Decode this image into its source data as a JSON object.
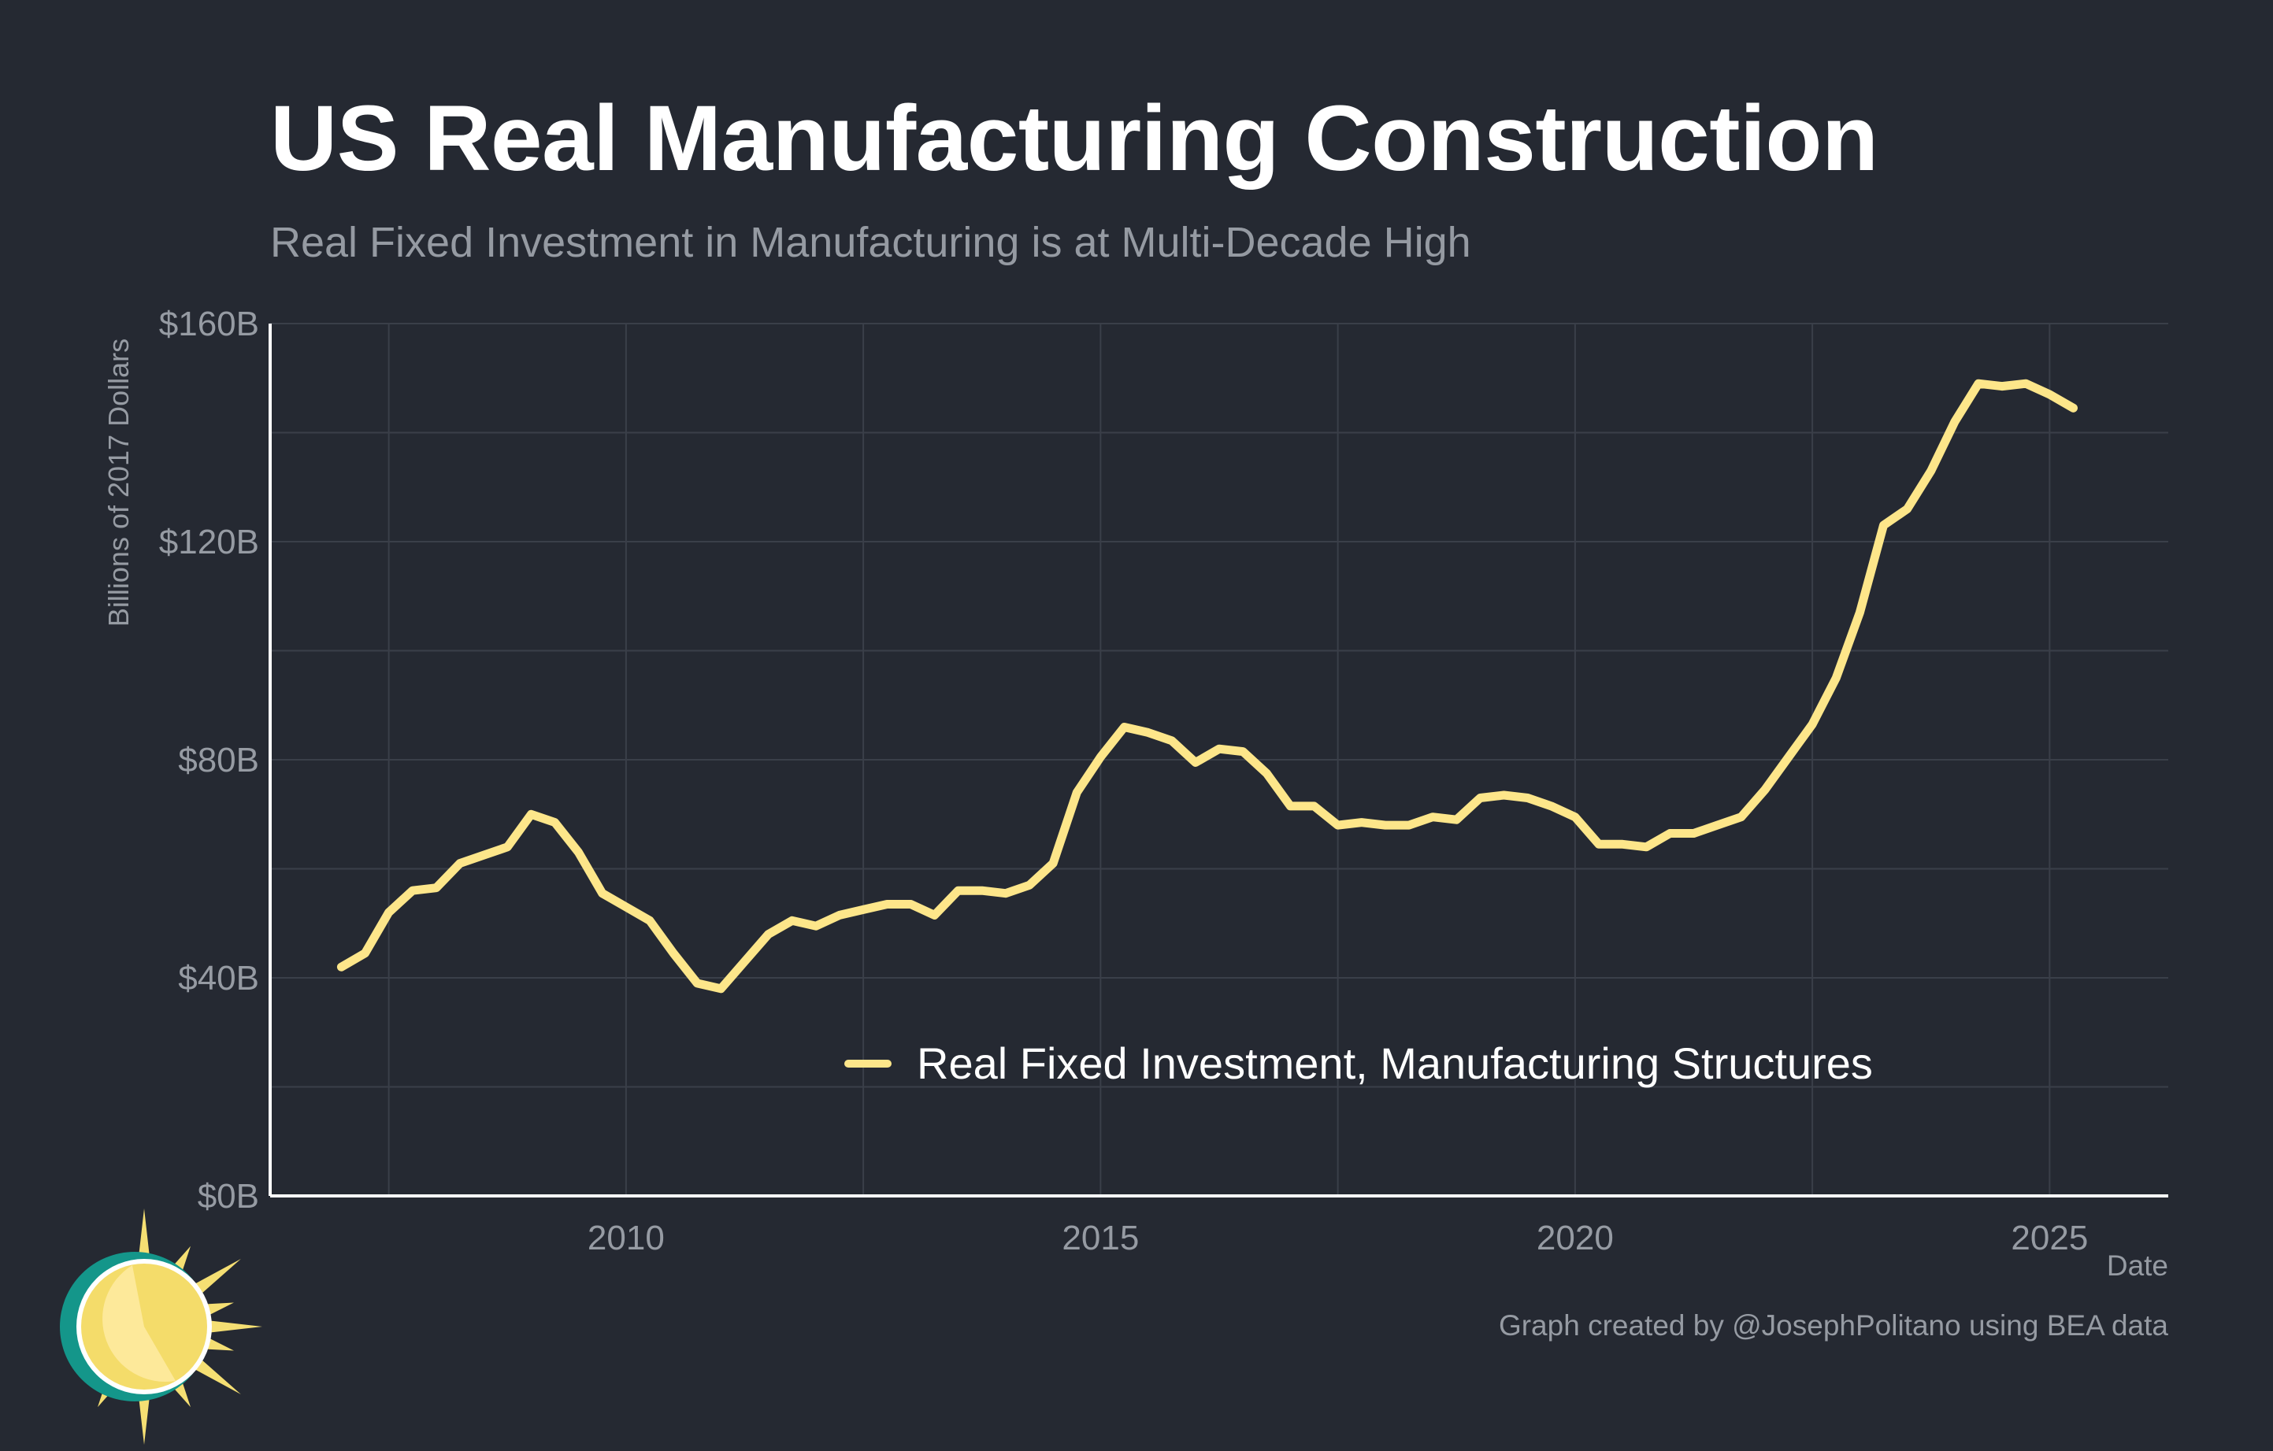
{
  "header": {
    "title": "US Real Manufacturing Construction",
    "subtitle": "Real Fixed Investment in Manufacturing is at Multi-Decade High"
  },
  "footer": {
    "credit": "Graph created by @JosephPolitano using BEA data"
  },
  "logo": {
    "icon": "sun-logo-icon"
  },
  "colors": {
    "background": "#252932",
    "line": "#fde68a",
    "grid": "#3a3f49",
    "axis": "#ffffff",
    "muted_text": "#969ba3",
    "logo_ring": "#14968a",
    "logo_sun": "#f5df73"
  },
  "chart_data": {
    "type": "line",
    "title": "US Real Manufacturing Construction",
    "subtitle": "Real Fixed Investment in Manufacturing is at Multi-Decade High",
    "xlabel": "Date",
    "ylabel": "Billions of 2017 Dollars",
    "xlim": [
      2006.25,
      2026.25
    ],
    "ylim": [
      0,
      160
    ],
    "x_ticks": [
      2010,
      2015,
      2020,
      2025
    ],
    "x_tick_labels": [
      "2010",
      "2015",
      "2020",
      "2025"
    ],
    "y_ticks": [
      0,
      40,
      80,
      120,
      160
    ],
    "y_tick_labels": [
      "$0B",
      "$40B",
      "$80B",
      "$120B",
      "$160B"
    ],
    "grid": true,
    "legend": "bottom-right",
    "series": [
      {
        "name": "Real Fixed Investment, Manufacturing Structures",
        "x": [
          "2007-Q1",
          "2007-Q2",
          "2007-Q3",
          "2007-Q4",
          "2008-Q1",
          "2008-Q2",
          "2008-Q3",
          "2008-Q4",
          "2009-Q1",
          "2009-Q2",
          "2009-Q3",
          "2009-Q4",
          "2010-Q1",
          "2010-Q2",
          "2010-Q3",
          "2010-Q4",
          "2011-Q1",
          "2011-Q2",
          "2011-Q3",
          "2011-Q4",
          "2012-Q1",
          "2012-Q2",
          "2012-Q3",
          "2012-Q4",
          "2013-Q1",
          "2013-Q2",
          "2013-Q3",
          "2013-Q4",
          "2014-Q1",
          "2014-Q2",
          "2014-Q3",
          "2014-Q4",
          "2015-Q1",
          "2015-Q2",
          "2015-Q3",
          "2015-Q4",
          "2016-Q1",
          "2016-Q2",
          "2016-Q3",
          "2016-Q4",
          "2017-Q1",
          "2017-Q2",
          "2017-Q3",
          "2017-Q4",
          "2018-Q1",
          "2018-Q2",
          "2018-Q3",
          "2018-Q4",
          "2019-Q1",
          "2019-Q2",
          "2019-Q3",
          "2019-Q4",
          "2020-Q1",
          "2020-Q2",
          "2020-Q3",
          "2020-Q4",
          "2021-Q1",
          "2021-Q2",
          "2021-Q3",
          "2021-Q4",
          "2022-Q1",
          "2022-Q2",
          "2022-Q3",
          "2022-Q4",
          "2023-Q1",
          "2023-Q2",
          "2023-Q3",
          "2023-Q4",
          "2024-Q1",
          "2024-Q2",
          "2024-Q3",
          "2024-Q4",
          "2025-Q1",
          "2025-Q2"
        ],
        "values": [
          42,
          44.5,
          52,
          56,
          56.5,
          61,
          62.5,
          64,
          70,
          68.5,
          63,
          55.5,
          53,
          50.5,
          44.5,
          39,
          38,
          43,
          48,
          50.5,
          49.5,
          51.5,
          52.5,
          53.5,
          53.5,
          51.5,
          56,
          56,
          55.5,
          57,
          61,
          74,
          80.5,
          86,
          85,
          83.5,
          79.5,
          82,
          81.5,
          77.5,
          71.5,
          71.5,
          68,
          68.5,
          68,
          68,
          69.5,
          69,
          73,
          73.5,
          73,
          71.5,
          69.5,
          64.5,
          64.5,
          64,
          66.5,
          66.5,
          68,
          69.5,
          74.5,
          80.5,
          86.5,
          95,
          107,
          123,
          126,
          133,
          142,
          149,
          148.5,
          149,
          147,
          144.5
        ],
        "color": "#fde68a"
      }
    ]
  }
}
